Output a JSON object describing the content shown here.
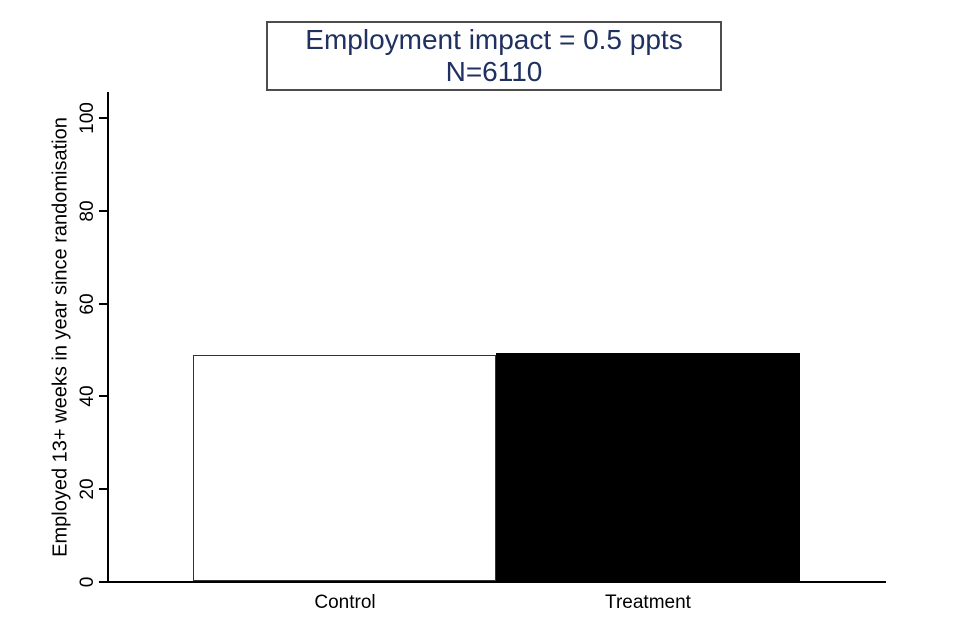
{
  "chart_data": {
    "type": "bar",
    "title": "Employment impact = 0.5 ppts",
    "subtitle": "N=6110",
    "n": 6110,
    "employment_impact_ppts": 0.5,
    "categories": [
      "Control",
      "Treatment"
    ],
    "values": [
      48.7,
      49.2
    ],
    "xlabel": "",
    "ylabel": "Employed 13+ weeks in year since randomisation",
    "ylim": [
      0,
      100
    ],
    "yticks": [
      0,
      20,
      40,
      60,
      80,
      100
    ],
    "ytick_labels": [
      "0",
      "20",
      "40",
      "60",
      "80",
      "100"
    ],
    "grid": false,
    "legend_position": "none",
    "colors": {
      "title_text": "#203060",
      "title_box_border": "#4d4d4d",
      "axis": "#000000",
      "bar_fills": [
        "#ffffff",
        "#000000"
      ],
      "bar_borders": [
        "#333333",
        "#000000"
      ],
      "background": "#ffffff"
    }
  }
}
